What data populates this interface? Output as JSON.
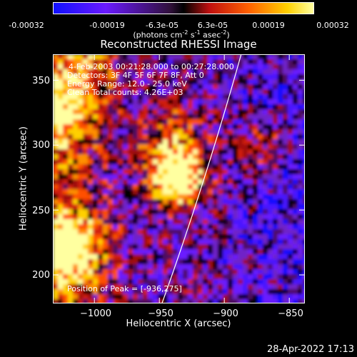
{
  "colorbar": {
    "ticks": [
      "-0.00032",
      "-0.00019",
      "-6.3e-05",
      "6.3e-05",
      "0.00019",
      "0.00032"
    ],
    "units": {
      "main": "(photons cm",
      "e1": "-2",
      "s": " s",
      "e2": "-1",
      "asec": " asec",
      "e3": "-2",
      "close": ")"
    },
    "colors": [
      "#1010ff",
      "#6a1aff",
      "#8020c0",
      "#c01010",
      "#ff6000",
      "#ffd000",
      "#ffffa0"
    ]
  },
  "chart_data": {
    "type": "heatmap",
    "title": "Reconstructed RHESSI Image",
    "xlabel": "Heliocentric X (arcsec)",
    "ylabel": "Heliocentric Y (arcsec)",
    "xlim": [
      -1032,
      -838
    ],
    "ylim": [
      178,
      370
    ],
    "xticks": [
      -1000,
      -950,
      -900,
      -850
    ],
    "xtick_labels": [
      "−1000",
      "−950",
      "−900",
      "−850"
    ],
    "yticks": [
      200,
      250,
      300,
      350
    ],
    "ytick_labels": [
      "200",
      "250",
      "300",
      "350"
    ],
    "peak": {
      "x": -936,
      "y": 275
    },
    "limb_line": [
      [
        -948,
        178
      ],
      [
        -915,
        270
      ],
      [
        -887,
        370
      ]
    ],
    "annotations": [
      "4-Feb-2003 00:21:28.000 to 00:27:28.000",
      "Detectors: 3F 4F 5F 6F 7F 8F, Att 0",
      "Energy Range: 12.0 - 25.0 keV",
      "Clean     Total counts: 4.26E+03"
    ],
    "peak_label": "Position of Peak = [-936,275]"
  },
  "footer": {
    "timestamp": "28-Apr-2022 17:13"
  }
}
